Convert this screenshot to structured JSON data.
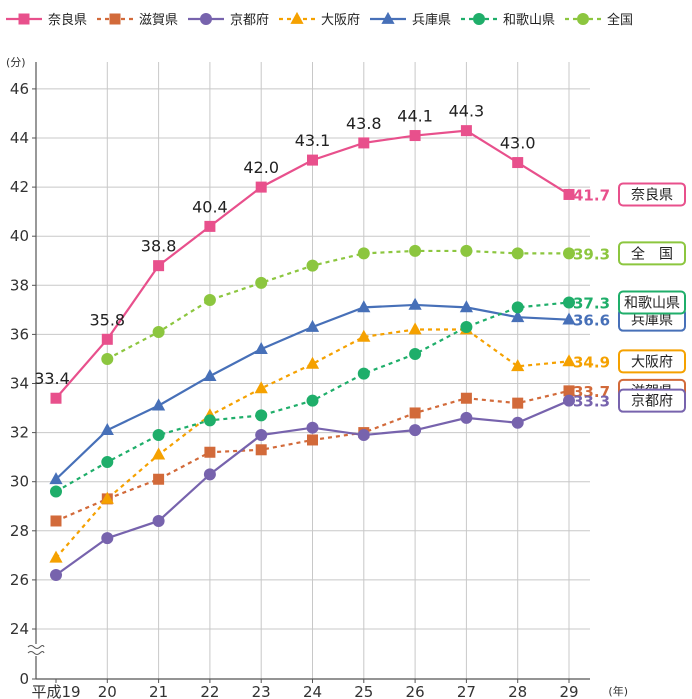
{
  "chart_data": {
    "type": "line",
    "title": "",
    "y_unit": "(分)",
    "x_unit": "(年)",
    "ylim": [
      0,
      46
    ],
    "y_axis_break": true,
    "y_ticks": [
      0,
      24,
      26,
      28,
      30,
      32,
      34,
      36,
      38,
      40,
      42,
      44,
      46
    ],
    "grid": true,
    "legend_position": "top",
    "categories": [
      "平成19",
      "20",
      "21",
      "22",
      "23",
      "24",
      "25",
      "26",
      "27",
      "28",
      "29"
    ],
    "series": [
      {
        "name": "奈良県",
        "color": "#e8508c",
        "marker": "square",
        "dashed": false,
        "values": [
          33.4,
          35.8,
          38.8,
          40.4,
          42.0,
          43.1,
          43.8,
          44.1,
          44.3,
          43.0,
          41.7
        ],
        "value_labels": [
          "33.4",
          "35.8",
          "38.8",
          "40.4",
          "42.0",
          "43.1",
          "43.8",
          "44.1",
          "44.3",
          "43.0",
          null
        ],
        "end_label": "41.7",
        "plate": "奈良県"
      },
      {
        "name": "滋賀県",
        "color": "#d26a3a",
        "marker": "square",
        "dashed": true,
        "values": [
          28.4,
          29.3,
          30.1,
          31.2,
          31.3,
          31.7,
          32.0,
          32.8,
          33.4,
          33.2,
          33.7
        ],
        "end_label": "33.7",
        "plate": "滋賀県"
      },
      {
        "name": "京都府",
        "color": "#7763ad",
        "marker": "circle",
        "dashed": false,
        "values": [
          26.2,
          27.7,
          28.4,
          30.3,
          31.9,
          32.2,
          31.9,
          32.1,
          32.6,
          32.4,
          33.3
        ],
        "end_label": "33.3",
        "plate": "京都府"
      },
      {
        "name": "大阪府",
        "color": "#f5a100",
        "marker": "triangle",
        "dashed": true,
        "values": [
          26.9,
          29.3,
          31.1,
          32.7,
          33.8,
          34.8,
          35.9,
          36.2,
          36.2,
          34.7,
          34.9
        ],
        "end_label": "34.9",
        "plate": "大阪府"
      },
      {
        "name": "兵庫県",
        "color": "#4770b8",
        "marker": "triangle",
        "dashed": false,
        "values": [
          30.1,
          32.1,
          33.1,
          34.3,
          35.4,
          36.3,
          37.1,
          37.2,
          37.1,
          36.7,
          36.6
        ],
        "end_label": "36.6",
        "plate": "兵庫県"
      },
      {
        "name": "和歌山県",
        "color": "#1fae6a",
        "marker": "circle",
        "dashed": true,
        "values": [
          29.6,
          30.8,
          31.9,
          32.5,
          32.7,
          33.3,
          34.4,
          35.2,
          36.3,
          37.1,
          37.3
        ],
        "end_label": "37.3",
        "plate": "和歌山県"
      },
      {
        "name": "全国",
        "color": "#8cc63f",
        "marker": "circle",
        "dashed": true,
        "values": [
          null,
          35.0,
          36.1,
          37.4,
          38.1,
          38.8,
          39.3,
          39.4,
          39.4,
          39.3,
          39.3
        ],
        "end_label": "39.3",
        "plate": "全　国"
      }
    ]
  }
}
